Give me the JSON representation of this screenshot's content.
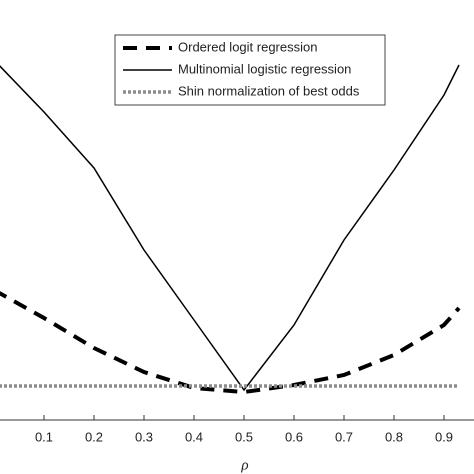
{
  "chart_data": {
    "type": "line",
    "x": [
      0,
      0.1,
      0.2,
      0.3,
      0.4,
      0.5,
      0.6,
      0.7,
      0.8,
      0.9,
      0.93
    ],
    "x_label": "ρ",
    "series": [
      {
        "name": "Ordered logit regression",
        "color": "#000000",
        "style": "dashed",
        "values": [
          32.5,
          25.5,
          18,
          12,
          8,
          7,
          8.75,
          11.25,
          16.25,
          23.75,
          28
        ]
      },
      {
        "name": "Multinomial logistic regression",
        "color": "#000000",
        "style": "solid",
        "values": [
          90,
          77,
          63,
          42.5,
          25,
          7.5,
          23.75,
          45,
          62.5,
          81.25,
          88.75
        ]
      },
      {
        "name": "Shin normalization of best odds",
        "color": "#8c8c8c",
        "style": "dotted",
        "values": [
          8.5,
          8.5,
          8.5,
          8.5,
          8.5,
          8.5,
          8.5,
          8.5,
          8.5,
          8.5,
          8.5
        ]
      }
    ],
    "xlim": [
      0,
      0.95
    ],
    "ylim": [
      0,
      100
    ],
    "xticks": [
      0.1,
      0.2,
      0.3,
      0.4,
      0.5,
      0.6,
      0.7,
      0.8,
      0.9
    ]
  }
}
